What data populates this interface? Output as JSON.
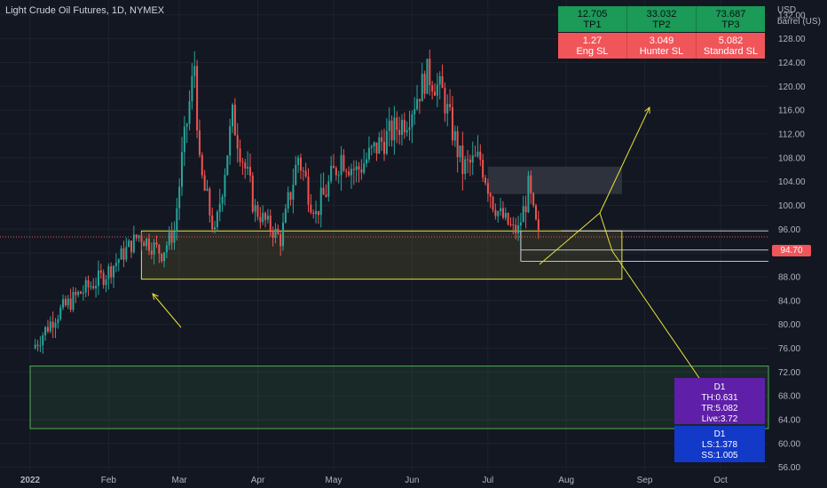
{
  "chart_title": "Light Crude Oil Futures, 1D, NYMEX",
  "price_axis_unit": [
    "USD",
    "barrel (US)"
  ],
  "current_price": "94.70",
  "targets": [
    {
      "value": "12.705",
      "label": "TP1"
    },
    {
      "value": "33.032",
      "label": "TP2"
    },
    {
      "value": "73.687",
      "label": "TP3"
    }
  ],
  "stops": [
    {
      "value": "1.27",
      "label": "Eng SL"
    },
    {
      "value": "3.049",
      "label": "Hunter SL"
    },
    {
      "value": "5.082",
      "label": "Standard SL"
    }
  ],
  "d1_stats": {
    "title": "D1",
    "th": "TH:0.631",
    "tr": "TR:5.082",
    "live": "Live:3.72"
  },
  "d1_stops": {
    "title": "D1",
    "ls": "LS:1.378",
    "ss": "SS:1.005"
  },
  "colors": {
    "background": "#131722",
    "candle_up": "#26a69a",
    "candle_down": "#ef5350",
    "zone_line": "#e8e23a",
    "demand_zone": "#4caf50",
    "supply_box": "#363a45",
    "grid": "#1e222d"
  },
  "chart_data": {
    "type": "candlestick",
    "title": "Light Crude Oil Futures, 1D, NYMEX",
    "x_ticks": [
      "2022",
      "Feb",
      "Mar",
      "Apr",
      "May",
      "Jun",
      "Jul",
      "Aug",
      "Sep",
      "Oct"
    ],
    "y_ticks": [
      "132.00",
      "128.00",
      "124.00",
      "120.00",
      "116.00",
      "112.00",
      "108.00",
      "104.00",
      "100.00",
      "96.00",
      "92.00",
      "88.00",
      "84.00",
      "80.00",
      "76.00",
      "72.00",
      "68.00",
      "64.00",
      "60.00",
      "56.00"
    ],
    "ylim": [
      55.5,
      134.5
    ],
    "anchors": [
      {
        "date": "2022-01-03",
        "close": 76.0
      },
      {
        "date": "2022-01-12",
        "close": 81.5
      },
      {
        "date": "2022-01-21",
        "close": 85.0
      },
      {
        "date": "2022-02-01",
        "close": 88.5
      },
      {
        "date": "2022-02-14",
        "close": 95.0
      },
      {
        "date": "2022-02-23",
        "close": 92.0
      },
      {
        "date": "2022-02-28",
        "close": 95.7
      },
      {
        "date": "2022-03-03",
        "close": 107.5
      },
      {
        "date": "2022-03-08",
        "close": 123.7
      },
      {
        "date": "2022-03-10",
        "close": 106.0
      },
      {
        "date": "2022-03-16",
        "close": 95.0
      },
      {
        "date": "2022-03-23",
        "close": 114.9
      },
      {
        "date": "2022-04-01",
        "close": 99.3
      },
      {
        "date": "2022-04-11",
        "close": 94.3
      },
      {
        "date": "2022-04-18",
        "close": 108.2
      },
      {
        "date": "2022-04-25",
        "close": 98.5
      },
      {
        "date": "2022-05-05",
        "close": 108.3
      },
      {
        "date": "2022-05-11",
        "close": 105.7
      },
      {
        "date": "2022-05-20",
        "close": 110.3
      },
      {
        "date": "2022-05-31",
        "close": 114.7
      },
      {
        "date": "2022-06-08",
        "close": 122.1
      },
      {
        "date": "2022-06-14",
        "close": 118.9
      },
      {
        "date": "2022-06-22",
        "close": 106.2
      },
      {
        "date": "2022-06-29",
        "close": 107.8
      },
      {
        "date": "2022-07-05",
        "close": 99.5
      },
      {
        "date": "2022-07-12",
        "close": 95.8
      },
      {
        "date": "2022-07-14",
        "close": 95.8
      },
      {
        "date": "2022-07-18",
        "close": 102.6
      },
      {
        "date": "2022-07-22",
        "close": 94.7
      }
    ],
    "zones": [
      {
        "kind": "yellow_zone",
        "from": "2022-02-14",
        "to": "2022-08-23",
        "low": 87.6,
        "high": 95.7
      },
      {
        "kind": "supply_box",
        "from": "2022-07-01",
        "to": "2022-08-23",
        "low": 101.9,
        "high": 106.5
      },
      {
        "kind": "demand_zone",
        "from": "2022-01-01",
        "to": "2022-10-31",
        "low": 62.5,
        "high": 73.0
      }
    ],
    "levels": [
      95.7,
      94.7,
      92.5,
      90.6
    ]
  }
}
